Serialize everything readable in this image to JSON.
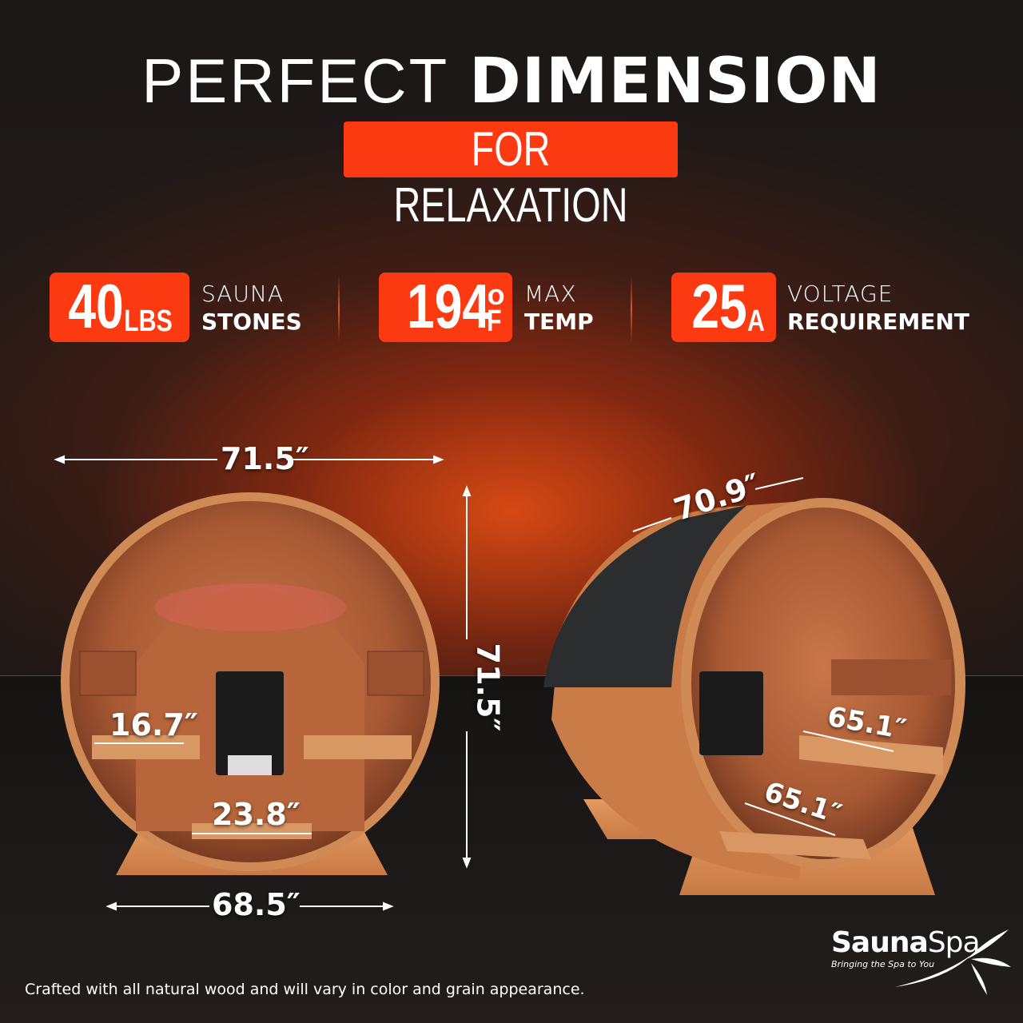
{
  "header": {
    "title_light": "PERFECT",
    "title_bold": "DIMENSION",
    "subtitle": "FOR RELAXATION"
  },
  "stats": [
    {
      "value": "40",
      "unit": "LBS",
      "label_line1": "SAUNA",
      "label_line2": "STONES"
    },
    {
      "value": "194",
      "unit_top": "o",
      "unit": "F",
      "label_line1": "MAX",
      "label_line2": "TEMP"
    },
    {
      "value": "25",
      "unit": "A",
      "label_line1": "VOLTAGE",
      "label_line2": "REQUIREMENT"
    }
  ],
  "dimensions": {
    "front_width_top": "71.5″",
    "front_height": "71.5″",
    "front_base_width": "68.5″",
    "bench_depth": "16.7″",
    "floor_width": "23.8″",
    "side_length": "70.9″",
    "bench_length": "65.1″",
    "floor_length": "65.1″"
  },
  "footer": {
    "note": "Crafted with all natural wood and will vary in color and grain appearance."
  },
  "brand": {
    "name_bold": "Sauna",
    "name_light": "Spa",
    "tagline": "Bringing the Spa to You"
  },
  "colors": {
    "accent": "#fb3a11",
    "background": "#191615",
    "wood": "#b9683a"
  }
}
